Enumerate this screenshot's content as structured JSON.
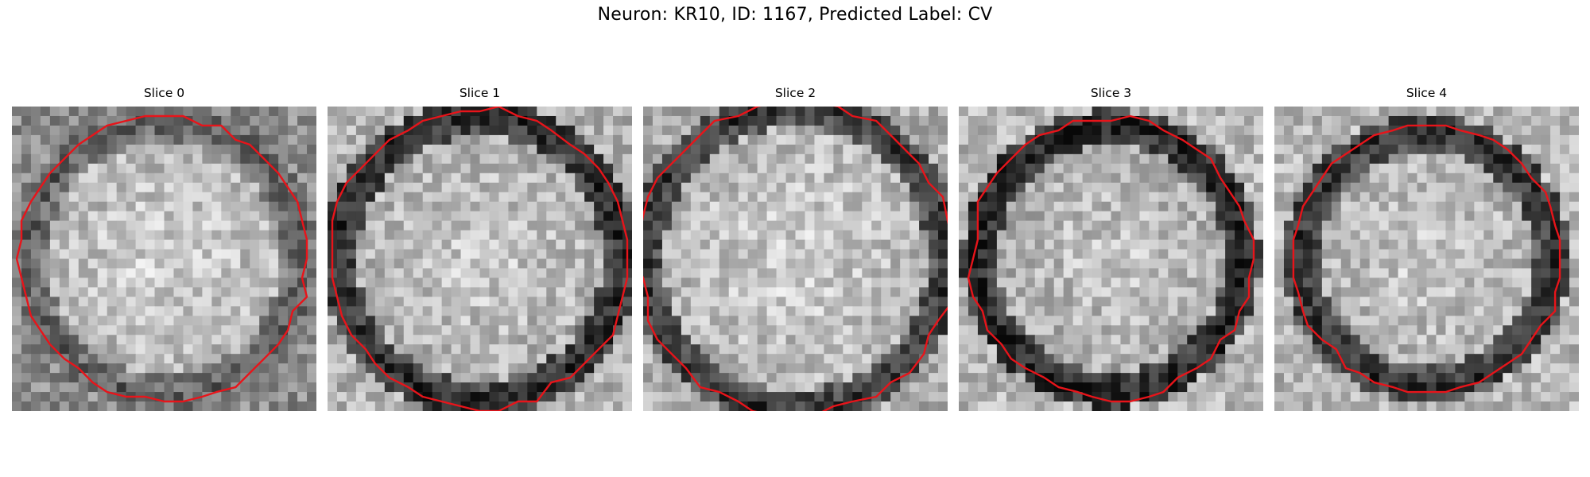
{
  "figure": {
    "title": "Neuron: KR10, ID: 1167, Predicted Label: CV"
  },
  "colors": {
    "contour": "#e8141a",
    "background": "#ffffff"
  },
  "panels": [
    {
      "title": "Slice 0",
      "seed": 11,
      "bright_center": 0.82,
      "ring_dark": 0.35,
      "outer": 0.55,
      "ring_r": 0.45
    },
    {
      "title": "Slice 1",
      "seed": 23,
      "bright_center": 0.8,
      "ring_dark": 0.15,
      "outer": 0.7,
      "ring_r": 0.47
    },
    {
      "title": "Slice 2",
      "seed": 37,
      "bright_center": 0.82,
      "ring_dark": 0.2,
      "outer": 0.68,
      "ring_r": 0.5
    },
    {
      "title": "Slice 3",
      "seed": 41,
      "bright_center": 0.78,
      "ring_dark": 0.12,
      "outer": 0.72,
      "ring_r": 0.44
    },
    {
      "title": "Slice 4",
      "seed": 53,
      "bright_center": 0.8,
      "ring_dark": 0.18,
      "outer": 0.72,
      "ring_r": 0.42
    }
  ]
}
